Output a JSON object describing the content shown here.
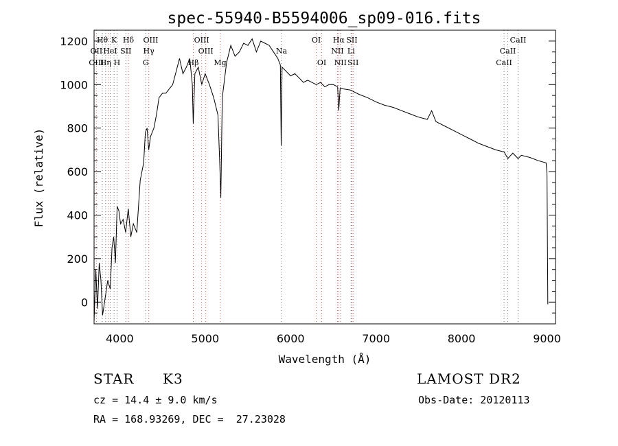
{
  "chart_data": {
    "type": "line",
    "title": "spec-55940-B5594006_sp09-016.fits",
    "xlabel": "Wavelength (Å)",
    "ylabel": "Flux (relative)",
    "xlim": [
      3700,
      9100
    ],
    "ylim": [
      -100,
      1250
    ],
    "xticks": [
      4000,
      5000,
      6000,
      7000,
      8000,
      9000
    ],
    "yticks": [
      0,
      200,
      400,
      600,
      800,
      1000,
      1200
    ],
    "grid": false,
    "series": [
      {
        "color": "#000000",
        "x": [
          3700,
          3720,
          3740,
          3760,
          3780,
          3800,
          3830,
          3860,
          3890,
          3910,
          3930,
          3950,
          3970,
          3990,
          4010,
          4040,
          4070,
          4100,
          4130,
          4160,
          4200,
          4240,
          4280,
          4300,
          4320,
          4340,
          4360,
          4380,
          4400,
          4430,
          4460,
          4500,
          4540,
          4580,
          4620,
          4660,
          4700,
          4740,
          4780,
          4820,
          4850,
          4860,
          4880,
          4920,
          4960,
          5000,
          5050,
          5100,
          5150,
          5170,
          5183,
          5200,
          5250,
          5300,
          5350,
          5400,
          5450,
          5500,
          5550,
          5600,
          5650,
          5700,
          5750,
          5800,
          5850,
          5880,
          5890,
          5900,
          5950,
          6000,
          6050,
          6100,
          6150,
          6200,
          6250,
          6300,
          6350,
          6400,
          6450,
          6500,
          6550,
          6563,
          6580,
          6620,
          6700,
          6800,
          6900,
          7000,
          7100,
          7200,
          7300,
          7400,
          7500,
          7600,
          7650,
          7700,
          7800,
          7900,
          8000,
          8100,
          8200,
          8300,
          8400,
          8500,
          8542,
          8600,
          8662,
          8700,
          8800,
          8900,
          8990,
          9000,
          9010
        ],
        "y": [
          -90,
          150,
          -30,
          180,
          100,
          -60,
          20,
          100,
          60,
          250,
          300,
          180,
          440,
          420,
          360,
          380,
          320,
          430,
          300,
          360,
          320,
          560,
          640,
          780,
          800,
          700,
          760,
          780,
          800,
          860,
          940,
          960,
          960,
          980,
          1000,
          1060,
          1120,
          1050,
          1080,
          1120,
          1000,
          820,
          1050,
          1080,
          1000,
          1050,
          1000,
          940,
          860,
          650,
          480,
          940,
          1100,
          1180,
          1130,
          1150,
          1190,
          1180,
          1210,
          1150,
          1200,
          1190,
          1180,
          1150,
          1120,
          1090,
          720,
          1080,
          1060,
          1040,
          1050,
          1030,
          1010,
          1020,
          1010,
          1000,
          1010,
          990,
          1000,
          1000,
          990,
          880,
          985,
          980,
          975,
          955,
          940,
          920,
          905,
          895,
          880,
          865,
          850,
          840,
          880,
          830,
          810,
          790,
          770,
          750,
          730,
          715,
          700,
          690,
          660,
          685,
          660,
          675,
          665,
          650,
          640,
          590,
          -10
        ]
      }
    ],
    "line_labels": [
      {
        "label": "Hθ",
        "wavelength": 3797,
        "row": 0
      },
      {
        "label": "K",
        "wavelength": 3934,
        "row": 0
      },
      {
        "label": "Hδ",
        "wavelength": 4102,
        "row": 0
      },
      {
        "label": "OIII",
        "wavelength": 4363,
        "row": 0
      },
      {
        "label": "OIII",
        "wavelength": 4959,
        "row": 0
      },
      {
        "label": "OI",
        "wavelength": 6300,
        "row": 0
      },
      {
        "label": "Hα",
        "wavelength": 6563,
        "row": 0
      },
      {
        "label": "SII",
        "wavelength": 6717,
        "row": 0
      },
      {
        "label": "CaII",
        "wavelength": 8662,
        "row": 0
      },
      {
        "label": "OII",
        "wavelength": 3727,
        "row": 1
      },
      {
        "label": "HeI",
        "wavelength": 3889,
        "row": 1
      },
      {
        "label": "SII",
        "wavelength": 4072,
        "row": 1
      },
      {
        "label": "Hγ",
        "wavelength": 4340,
        "row": 1
      },
      {
        "label": "OIII",
        "wavelength": 5007,
        "row": 1
      },
      {
        "label": "Na",
        "wavelength": 5893,
        "row": 1
      },
      {
        "label": "NII",
        "wavelength": 6548,
        "row": 1
      },
      {
        "label": "Li",
        "wavelength": 6708,
        "row": 1
      },
      {
        "label": "CaII",
        "wavelength": 8542,
        "row": 1
      },
      {
        "label": "OIII",
        "wavelength": 3727,
        "row": 2
      },
      {
        "label": "Hη",
        "wavelength": 3835,
        "row": 2
      },
      {
        "label": "H",
        "wavelength": 3969,
        "row": 2
      },
      {
        "label": "G",
        "wavelength": 4305,
        "row": 2
      },
      {
        "label": "Hβ",
        "wavelength": 4861,
        "row": 2
      },
      {
        "label": "Mg",
        "wavelength": 5175,
        "row": 2
      },
      {
        "label": "OI",
        "wavelength": 6364,
        "row": 2
      },
      {
        "label": "NII",
        "wavelength": 6583,
        "row": 2
      },
      {
        "label": "SII",
        "wavelength": 6731,
        "row": 2
      },
      {
        "label": "CaII",
        "wavelength": 8498,
        "row": 2
      }
    ],
    "emission_lines": [
      3727,
      3869,
      4102,
      4340,
      4861,
      4959,
      5007,
      5175,
      6300,
      6364,
      6548,
      6563,
      6583,
      6717,
      6731
    ],
    "absorption_lines": [
      3797,
      3835,
      3889,
      3934,
      3969,
      4072,
      4305,
      5893,
      6708,
      8498,
      8542,
      8662
    ],
    "emission_color": "#d06060",
    "absorption_color": "#707070"
  },
  "info": {
    "object_type": "STAR",
    "subclass": "K3",
    "survey": "LAMOST DR2",
    "cz": "cz = 14.4 ± 9.0 km/s",
    "obs_date": "Obs-Date: 20120113",
    "radec": "RA = 168.93269, DEC =  27.23028"
  }
}
